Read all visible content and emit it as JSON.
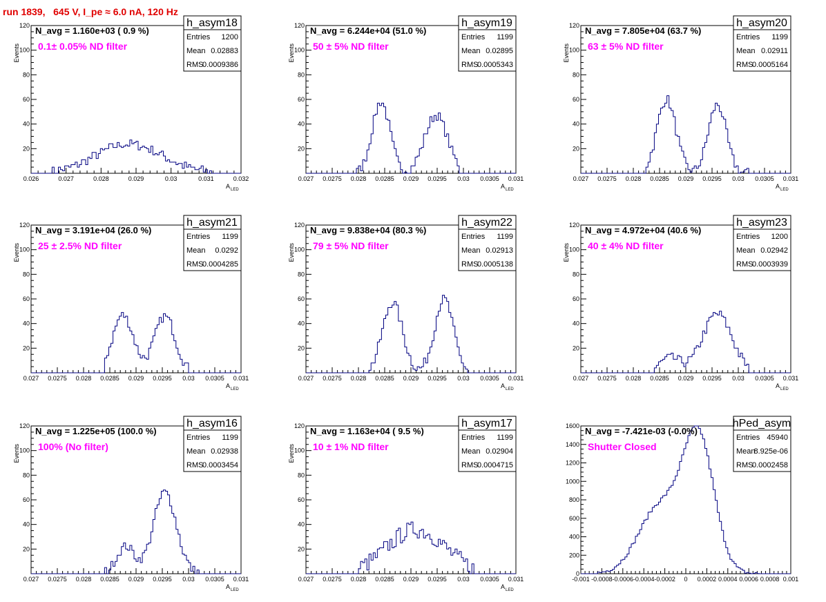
{
  "page_title": "run 1839,   645 V, I_pe ≈ 6.0 nA, 120 Hz",
  "chart_data": [
    {
      "type": "histogram",
      "name": "h_asym18",
      "navg": "N_avg = 1.160e+03 ( 0.9 %)",
      "filter": "0.1± 0.05% ND filter",
      "stats": {
        "entries": "1200",
        "mean": "0.02883",
        "rms": "0.0009386"
      },
      "xlim": [
        0.026,
        0.032
      ],
      "ylim": [
        0,
        120
      ],
      "xticks": [
        0.026,
        0.027,
        0.028,
        0.029,
        0.03,
        0.031,
        0.032
      ],
      "xtick_labels": [
        "0.026",
        "0.027",
        "0.028",
        "0.029",
        "0.03",
        "0.031",
        "0.032"
      ],
      "yticks": [
        0,
        20,
        40,
        60,
        80,
        100,
        120
      ],
      "xlabel": "A",
      "xlabel_sub": "LED",
      "ylabel": "Events",
      "components": [
        {
          "mu": 0.0288,
          "sigma": 0.00095,
          "amp": 24
        }
      ],
      "noise": 4,
      "x_from": 0.02655,
      "x_to": 0.03135
    },
    {
      "type": "histogram",
      "name": "h_asym19",
      "navg": "N_avg = 6.244e+04 (51.0 %)",
      "filter": "50 ± 5% ND filter",
      "stats": {
        "entries": "1199",
        "mean": "0.02895",
        "rms": "0.0005343"
      },
      "xlim": [
        0.027,
        0.031
      ],
      "ylim": [
        0,
        120
      ],
      "xticks": [
        0.027,
        0.0275,
        0.028,
        0.0285,
        0.029,
        0.0295,
        0.03,
        0.0305,
        0.031
      ],
      "xtick_labels": [
        "0.027",
        "0.0275",
        "0.028",
        "0.0285",
        "0.029",
        "0.0295",
        "0.03",
        "0.0305",
        "0.031"
      ],
      "yticks": [
        0,
        20,
        40,
        60,
        80,
        100,
        120
      ],
      "xlabel": "A",
      "xlabel_sub": "LED",
      "ylabel": "Events",
      "components": [
        {
          "mu": 0.02843,
          "sigma": 0.00017,
          "amp": 58
        },
        {
          "mu": 0.02948,
          "sigma": 0.00022,
          "amp": 47
        }
      ],
      "noise": 4,
      "x_from": 0.02795,
      "x_to": 0.0299
    },
    {
      "type": "histogram",
      "name": "h_asym20",
      "navg": "N_avg = 7.805e+04 (63.7 %)",
      "filter": "63 ± 5% ND filter",
      "stats": {
        "entries": "1199",
        "mean": "0.02911",
        "rms": "0.0005164"
      },
      "xlim": [
        0.027,
        0.031
      ],
      "ylim": [
        0,
        120
      ],
      "xticks": [
        0.027,
        0.0275,
        0.028,
        0.0285,
        0.029,
        0.0295,
        0.03,
        0.0305,
        0.031
      ],
      "xtick_labels": [
        "0.027",
        "0.0275",
        "0.028",
        "0.0285",
        "0.029",
        "0.0295",
        "0.03",
        "0.0305",
        "0.031"
      ],
      "yticks": [
        0,
        20,
        40,
        60,
        80,
        100,
        120
      ],
      "xlabel": "A",
      "xlabel_sub": "LED",
      "ylabel": "Events",
      "components": [
        {
          "mu": 0.02863,
          "sigma": 0.00018,
          "amp": 60
        },
        {
          "mu": 0.0296,
          "sigma": 0.00017,
          "amp": 56
        }
      ],
      "noise": 4,
      "x_from": 0.02825,
      "x_to": 0.0302
    },
    {
      "type": "histogram",
      "name": "h_asym21",
      "navg": "N_avg = 3.191e+04 (26.0 %)",
      "filter": "25 ± 2.5% ND filter",
      "stats": {
        "entries": "1199",
        "mean": "0.0292",
        "rms": "0.0004285"
      },
      "xlim": [
        0.027,
        0.031
      ],
      "ylim": [
        0,
        120
      ],
      "xticks": [
        0.027,
        0.0275,
        0.028,
        0.0285,
        0.029,
        0.0295,
        0.03,
        0.0305,
        0.031
      ],
      "xtick_labels": [
        "0.027",
        "0.0275",
        "0.028",
        "0.0285",
        "0.029",
        "0.0295",
        "0.03",
        "0.0305",
        "0.031"
      ],
      "yticks": [
        0,
        20,
        40,
        60,
        80,
        100,
        120
      ],
      "xlabel": "A",
      "xlabel_sub": "LED",
      "ylabel": "Events",
      "components": [
        {
          "mu": 0.02875,
          "sigma": 0.0002,
          "amp": 47
        },
        {
          "mu": 0.02955,
          "sigma": 0.0002,
          "amp": 46
        }
      ],
      "noise": 4,
      "x_from": 0.0284,
      "x_to": 0.0301
    },
    {
      "type": "histogram",
      "name": "h_asym22",
      "navg": "N_avg = 9.838e+04 (80.3 %)",
      "filter": "79 ± 5% ND filter",
      "stats": {
        "entries": "1199",
        "mean": "0.02913",
        "rms": "0.0005138"
      },
      "xlim": [
        0.027,
        0.031
      ],
      "ylim": [
        0,
        120
      ],
      "xticks": [
        0.027,
        0.0275,
        0.028,
        0.0285,
        0.029,
        0.0295,
        0.03,
        0.0305,
        0.031
      ],
      "xtick_labels": [
        "0.027",
        "0.0275",
        "0.028",
        "0.0285",
        "0.029",
        "0.0295",
        "0.03",
        "0.0305",
        "0.031"
      ],
      "yticks": [
        0,
        20,
        40,
        60,
        80,
        100,
        120
      ],
      "xlabel": "A",
      "xlabel_sub": "LED",
      "ylabel": "Events",
      "components": [
        {
          "mu": 0.02865,
          "sigma": 0.00019,
          "amp": 57
        },
        {
          "mu": 0.02963,
          "sigma": 0.00018,
          "amp": 60
        }
      ],
      "noise": 4,
      "x_from": 0.0282,
      "x_to": 0.0301
    },
    {
      "type": "histogram",
      "name": "h_asym23",
      "navg": "N_avg = 4.972e+04 (40.6 %)",
      "filter": "40 ± 4% ND filter",
      "stats": {
        "entries": "1200",
        "mean": "0.02942",
        "rms": "0.0003939"
      },
      "xlim": [
        0.027,
        0.031
      ],
      "ylim": [
        0,
        120
      ],
      "xticks": [
        0.027,
        0.0275,
        0.028,
        0.0285,
        0.029,
        0.0295,
        0.03,
        0.0305,
        0.031
      ],
      "xtick_labels": [
        "0.027",
        "0.0275",
        "0.028",
        "0.0285",
        "0.029",
        "0.0295",
        "0.03",
        "0.0305",
        "0.031"
      ],
      "yticks": [
        0,
        20,
        40,
        60,
        80,
        100,
        120
      ],
      "xlabel": "A",
      "xlabel_sub": "LED",
      "ylabel": "Events",
      "components": [
        {
          "mu": 0.0296,
          "sigma": 0.00028,
          "amp": 48
        },
        {
          "mu": 0.0287,
          "sigma": 0.0002,
          "amp": 12
        }
      ],
      "noise": 4,
      "x_from": 0.0284,
      "x_to": 0.0302
    },
    {
      "type": "histogram",
      "name": "h_asym16",
      "navg": "N_avg = 1.225e+05 (100.0 %)",
      "filter": "100% (No filter)",
      "stats": {
        "entries": "1199",
        "mean": "0.02938",
        "rms": "0.0003454"
      },
      "xlim": [
        0.027,
        0.031
      ],
      "ylim": [
        0,
        120
      ],
      "xticks": [
        0.027,
        0.0275,
        0.028,
        0.0285,
        0.029,
        0.0295,
        0.03,
        0.0305,
        0.031
      ],
      "xtick_labels": [
        "0.027",
        "0.0275",
        "0.028",
        "0.0285",
        "0.029",
        "0.0295",
        "0.03",
        "0.0305",
        "0.031"
      ],
      "yticks": [
        0,
        20,
        40,
        60,
        80,
        100,
        120
      ],
      "xlabel": "A",
      "xlabel_sub": "LED",
      "ylabel": "Events",
      "components": [
        {
          "mu": 0.02955,
          "sigma": 0.00022,
          "amp": 66
        },
        {
          "mu": 0.0288,
          "sigma": 0.00017,
          "amp": 22
        }
      ],
      "noise": 4,
      "x_from": 0.0284,
      "x_to": 0.0302
    },
    {
      "type": "histogram",
      "name": "h_asym17",
      "navg": "N_avg = 1.163e+04 ( 9.5 %)",
      "filter": "10 ± 1% ND filter",
      "stats": {
        "entries": "1199",
        "mean": "0.02904",
        "rms": "0.0004715"
      },
      "xlim": [
        0.027,
        0.031
      ],
      "ylim": [
        0,
        120
      ],
      "xticks": [
        0.027,
        0.0275,
        0.028,
        0.0285,
        0.029,
        0.0295,
        0.03,
        0.0305,
        0.031
      ],
      "xtick_labels": [
        "0.027",
        "0.0275",
        "0.028",
        "0.0285",
        "0.029",
        "0.0295",
        "0.03",
        "0.0305",
        "0.031"
      ],
      "yticks": [
        0,
        20,
        40,
        60,
        80,
        100,
        120
      ],
      "xlabel": "A",
      "xlabel_sub": "LED",
      "ylabel": "Events",
      "components": [
        {
          "mu": 0.0291,
          "sigma": 0.00055,
          "amp": 36
        }
      ],
      "noise": 7,
      "x_from": 0.028,
      "x_to": 0.0302
    },
    {
      "type": "histogram",
      "name": "hPed_asym",
      "navg": "N_avg = -7.421e-03 (-0.0%)",
      "filter": "Shutter Closed",
      "stats": {
        "entries": "45940",
        "mean": "8.925e-06",
        "rms": "0.0002458"
      },
      "xlim": [
        -0.001,
        0.001
      ],
      "ylim": [
        0,
        1600
      ],
      "xticks": [
        -0.001,
        -0.0008,
        -0.0006,
        -0.0004,
        -0.0002,
        0,
        0.0002,
        0.0004,
        0.0006,
        0.0008,
        0.001
      ],
      "xtick_labels": [
        "-0.001",
        "-0.0008",
        "-0.0006",
        "-0.0004",
        "-0.0002",
        "0",
        "0.0002",
        "0.0004",
        "0.0006",
        "0.0008",
        "0.001"
      ],
      "yticks": [
        0,
        200,
        400,
        600,
        800,
        1000,
        1200,
        1400,
        1600
      ],
      "xlabel": "",
      "xlabel_sub": "",
      "ylabel": "",
      "components": [
        {
          "mu": 0.00012,
          "sigma": 0.00015,
          "amp": 1450
        },
        {
          "mu": -0.00025,
          "sigma": 0.0002,
          "amp": 720
        }
      ],
      "noise": 20,
      "x_from": -0.00085,
      "x_to": 0.0007
    }
  ]
}
